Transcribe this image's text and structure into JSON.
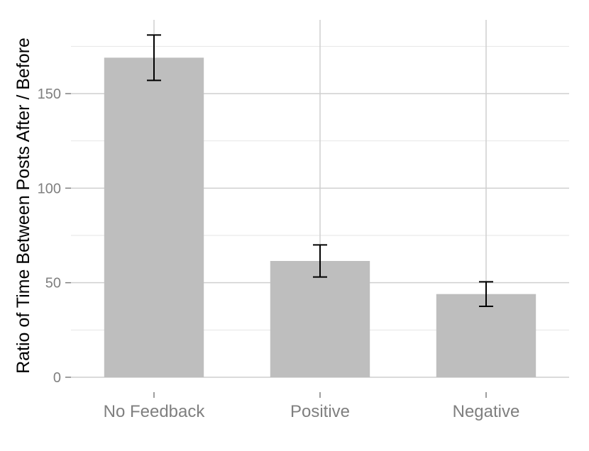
{
  "chart_data": {
    "type": "bar",
    "categories": [
      "No Feedback",
      "Positive",
      "Negative"
    ],
    "values": [
      169,
      61.5,
      44
    ],
    "error_low": [
      157,
      53,
      37.5
    ],
    "error_high": [
      181,
      70,
      50.5
    ],
    "xlabel": "",
    "ylabel": "Ratio of Time Between Posts After / Before",
    "ylim": [
      0,
      188
    ],
    "yticks": [
      0,
      50,
      100,
      150
    ],
    "ytick_labels": [
      "0",
      "50",
      "100",
      "150"
    ],
    "grid": true,
    "colors": {
      "bar": "#bebebe",
      "grid_major": "#cfcfcf",
      "grid_minor": "#e6e6e6",
      "errorbar": "#000000",
      "tick_text": "#7f7f7f"
    }
  }
}
